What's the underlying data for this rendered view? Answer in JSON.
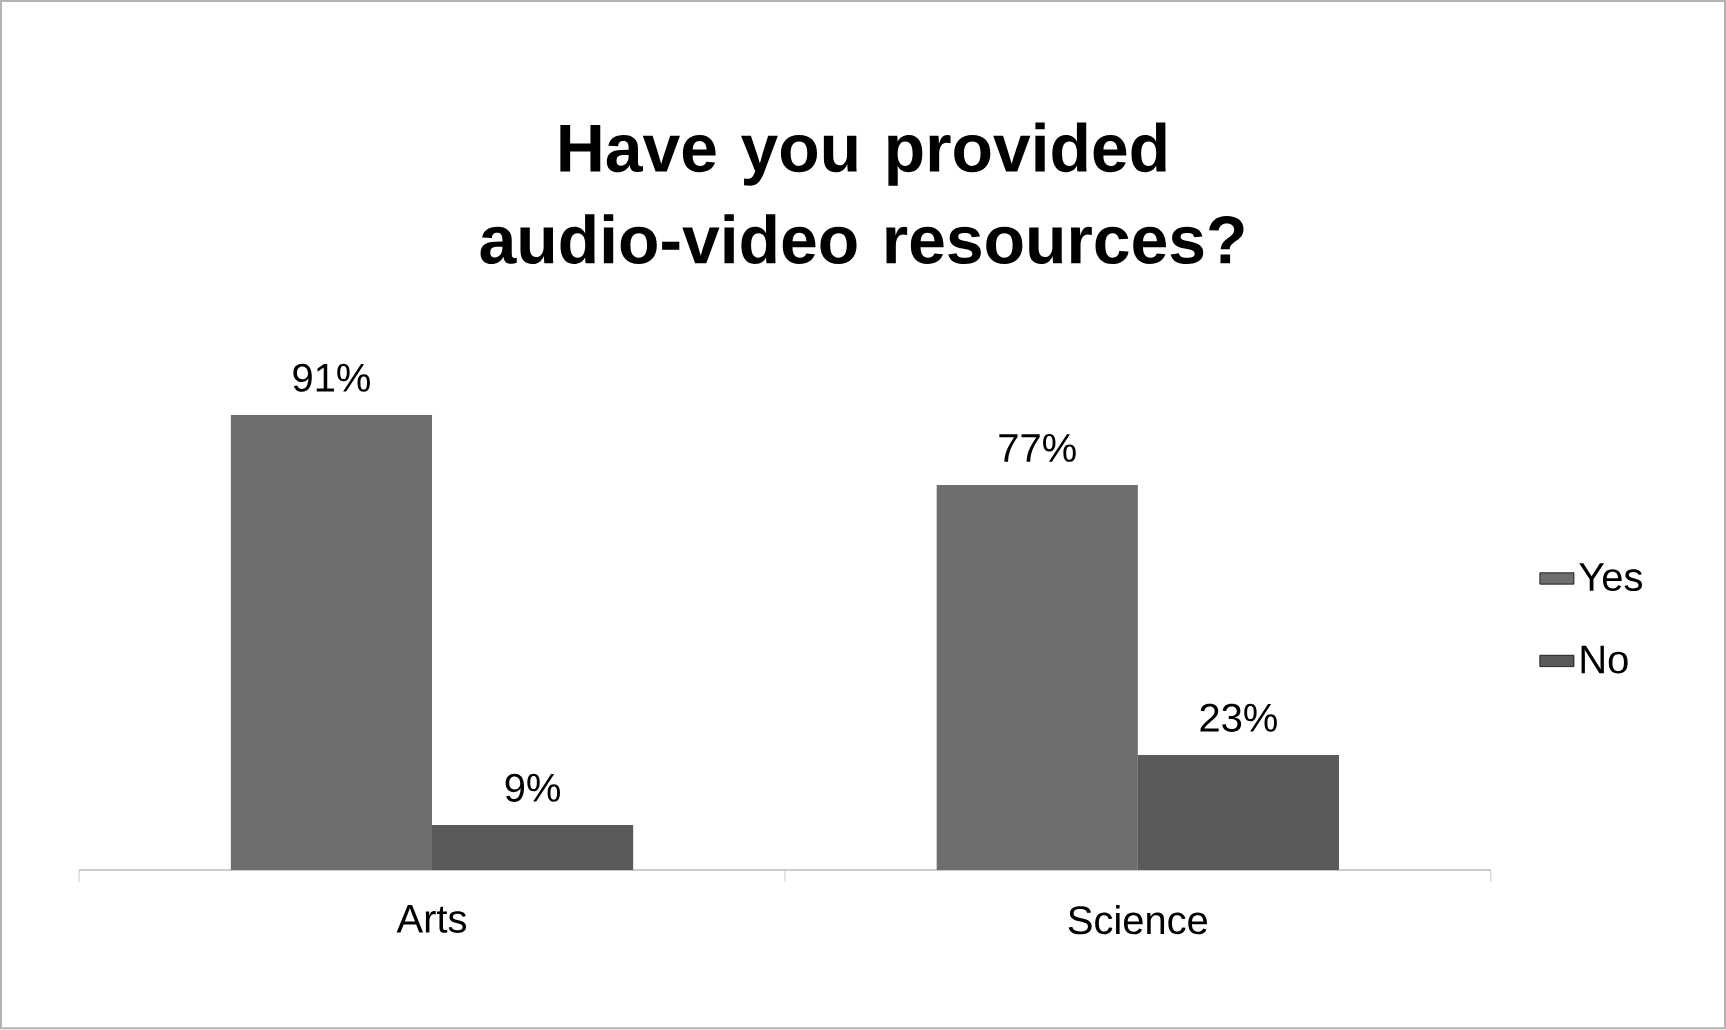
{
  "chart_data": {
    "type": "bar",
    "title": "Have you provided audio-video resources?",
    "categories": [
      "Arts",
      "Science"
    ],
    "series": [
      {
        "name": "Yes",
        "color": "#6e6e6e",
        "values": [
          91,
          77
        ],
        "value_labels": [
          "91%",
          "77%"
        ]
      },
      {
        "name": "No",
        "color": "#5a5a5a",
        "values": [
          9,
          23
        ],
        "value_labels": [
          "9%",
          "23%"
        ]
      }
    ],
    "legend": "right"
  }
}
